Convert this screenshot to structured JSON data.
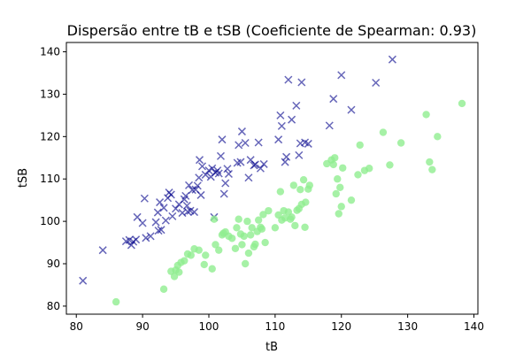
{
  "chart_data": {
    "type": "scatter",
    "title": "Dispersão entre tB e tSB (Coeficiente de Spearman: 0.93)",
    "xlabel": "tB",
    "ylabel": "tSB",
    "xlim": [
      78.5,
      140.6
    ],
    "ylim": [
      78.1,
      142.2
    ],
    "xticks": [
      80,
      90,
      100,
      110,
      120,
      130,
      140
    ],
    "yticks": [
      80,
      90,
      100,
      110,
      120,
      130,
      140
    ],
    "grid": false,
    "series": [
      {
        "marker": "x",
        "color": "#00008b",
        "alpha": 0.6,
        "points": [
          [
            81.0,
            86.0
          ],
          [
            84.0,
            93.2
          ],
          [
            87.5,
            95.3
          ],
          [
            88.0,
            95.6
          ],
          [
            88.3,
            94.4
          ],
          [
            88.6,
            95.2
          ],
          [
            89.0,
            95.7
          ],
          [
            89.2,
            101.0
          ],
          [
            90.0,
            99.6
          ],
          [
            90.3,
            105.4
          ],
          [
            90.5,
            96.1
          ],
          [
            91.2,
            96.5
          ],
          [
            92.0,
            99.8
          ],
          [
            92.3,
            102.1
          ],
          [
            92.4,
            97.8
          ],
          [
            92.6,
            104.5
          ],
          [
            92.8,
            98.0
          ],
          [
            93.2,
            103.2
          ],
          [
            93.5,
            100.2
          ],
          [
            93.8,
            105.5
          ],
          [
            94.0,
            106.8
          ],
          [
            94.3,
            106.3
          ],
          [
            94.5,
            101.2
          ],
          [
            95.0,
            103.0
          ],
          [
            95.5,
            104.0
          ],
          [
            96.0,
            102.0
          ],
          [
            96.3,
            105.2
          ],
          [
            96.5,
            106.0
          ],
          [
            96.7,
            103.7
          ],
          [
            96.8,
            102.3
          ],
          [
            97.0,
            108.5
          ],
          [
            97.2,
            102.5
          ],
          [
            97.5,
            107.4
          ],
          [
            97.8,
            102.2
          ],
          [
            98.0,
            107.5
          ],
          [
            98.3,
            108.4
          ],
          [
            98.5,
            110.3
          ],
          [
            98.6,
            114.5
          ],
          [
            98.8,
            106.2
          ],
          [
            99.0,
            113.0
          ],
          [
            99.5,
            111.0
          ],
          [
            100.0,
            112.0
          ],
          [
            100.3,
            110.5
          ],
          [
            100.5,
            112.5
          ],
          [
            100.8,
            101.0
          ],
          [
            101.0,
            111.5
          ],
          [
            101.3,
            112.0
          ],
          [
            101.5,
            111.3
          ],
          [
            101.8,
            115.4
          ],
          [
            102.0,
            119.3
          ],
          [
            102.3,
            106.5
          ],
          [
            102.5,
            109.0
          ],
          [
            102.8,
            112.4
          ],
          [
            103.0,
            111.2
          ],
          [
            104.3,
            113.8
          ],
          [
            104.5,
            118.0
          ],
          [
            104.8,
            114.0
          ],
          [
            105.0,
            121.2
          ],
          [
            105.5,
            118.5
          ],
          [
            106.0,
            110.3
          ],
          [
            106.3,
            114.5
          ],
          [
            106.8,
            113.2
          ],
          [
            107.0,
            113.4
          ],
          [
            107.5,
            118.6
          ],
          [
            107.8,
            112.5
          ],
          [
            108.3,
            113.5
          ],
          [
            110.5,
            119.3
          ],
          [
            110.8,
            125.0
          ],
          [
            111.0,
            122.5
          ],
          [
            111.5,
            114.0
          ],
          [
            111.7,
            115.2
          ],
          [
            112.0,
            133.4
          ],
          [
            112.5,
            124.0
          ],
          [
            113.2,
            127.3
          ],
          [
            113.6,
            115.6
          ],
          [
            113.8,
            118.4
          ],
          [
            114.0,
            132.8
          ],
          [
            114.5,
            118.6
          ],
          [
            115.0,
            118.3
          ],
          [
            118.2,
            122.6
          ],
          [
            118.8,
            128.9
          ],
          [
            120.0,
            134.5
          ],
          [
            121.5,
            126.3
          ],
          [
            125.2,
            132.7
          ],
          [
            127.7,
            138.2
          ]
        ]
      },
      {
        "marker": "o",
        "color": "#90ee90",
        "alpha": 0.8,
        "points": [
          [
            86.0,
            81.0
          ],
          [
            93.2,
            84.0
          ],
          [
            94.3,
            88.2
          ],
          [
            94.8,
            87.0
          ],
          [
            95.0,
            88.5
          ],
          [
            95.3,
            89.6
          ],
          [
            95.5,
            88.0
          ],
          [
            95.8,
            90.3
          ],
          [
            96.3,
            90.7
          ],
          [
            96.8,
            92.3
          ],
          [
            97.3,
            92.0
          ],
          [
            97.8,
            93.5
          ],
          [
            98.5,
            93.2
          ],
          [
            99.3,
            89.8
          ],
          [
            99.5,
            92.0
          ],
          [
            100.5,
            88.8
          ],
          [
            100.8,
            100.5
          ],
          [
            101.0,
            94.5
          ],
          [
            101.5,
            93.2
          ],
          [
            102.0,
            96.8
          ],
          [
            102.2,
            97.2
          ],
          [
            102.5,
            97.5
          ],
          [
            103.0,
            96.5
          ],
          [
            103.5,
            96.0
          ],
          [
            104.0,
            93.6
          ],
          [
            104.2,
            98.5
          ],
          [
            104.5,
            100.5
          ],
          [
            104.8,
            97.0
          ],
          [
            105.0,
            94.5
          ],
          [
            105.3,
            96.5
          ],
          [
            105.5,
            90.0
          ],
          [
            105.8,
            100.0
          ],
          [
            106.0,
            92.5
          ],
          [
            106.3,
            96.8
          ],
          [
            106.5,
            98.5
          ],
          [
            106.8,
            94.0
          ],
          [
            107.0,
            94.6
          ],
          [
            107.3,
            97.6
          ],
          [
            107.5,
            100.3
          ],
          [
            107.8,
            98.6
          ],
          [
            108.0,
            98.2
          ],
          [
            108.2,
            101.6
          ],
          [
            108.5,
            95.0
          ],
          [
            109.0,
            102.5
          ],
          [
            110.0,
            98.5
          ],
          [
            110.5,
            101.5
          ],
          [
            110.8,
            107.0
          ],
          [
            111.0,
            100.3
          ],
          [
            111.3,
            102.5
          ],
          [
            111.5,
            100.8
          ],
          [
            112.0,
            102.2
          ],
          [
            112.3,
            100.5
          ],
          [
            112.5,
            101.0
          ],
          [
            112.8,
            108.5
          ],
          [
            113.0,
            99.0
          ],
          [
            113.3,
            102.6
          ],
          [
            113.6,
            103.0
          ],
          [
            113.8,
            107.5
          ],
          [
            114.0,
            104.0
          ],
          [
            114.3,
            109.8
          ],
          [
            114.5,
            98.6
          ],
          [
            114.6,
            104.5
          ],
          [
            115.0,
            107.6
          ],
          [
            115.2,
            108.5
          ],
          [
            117.8,
            113.6
          ],
          [
            118.5,
            114.5
          ],
          [
            118.8,
            113.4
          ],
          [
            119.0,
            115.0
          ],
          [
            119.2,
            106.5
          ],
          [
            119.4,
            110.0
          ],
          [
            119.6,
            101.8
          ],
          [
            119.8,
            108.0
          ],
          [
            120.0,
            103.5
          ],
          [
            120.2,
            112.6
          ],
          [
            121.5,
            105.0
          ],
          [
            122.5,
            111.0
          ],
          [
            122.8,
            118.0
          ],
          [
            123.5,
            112.0
          ],
          [
            124.2,
            112.5
          ],
          [
            126.3,
            121.0
          ],
          [
            127.3,
            113.3
          ],
          [
            129.0,
            118.5
          ],
          [
            132.8,
            125.2
          ],
          [
            133.3,
            114.0
          ],
          [
            133.7,
            112.2
          ],
          [
            134.5,
            120.0
          ],
          [
            138.2,
            127.8
          ]
        ]
      }
    ]
  }
}
